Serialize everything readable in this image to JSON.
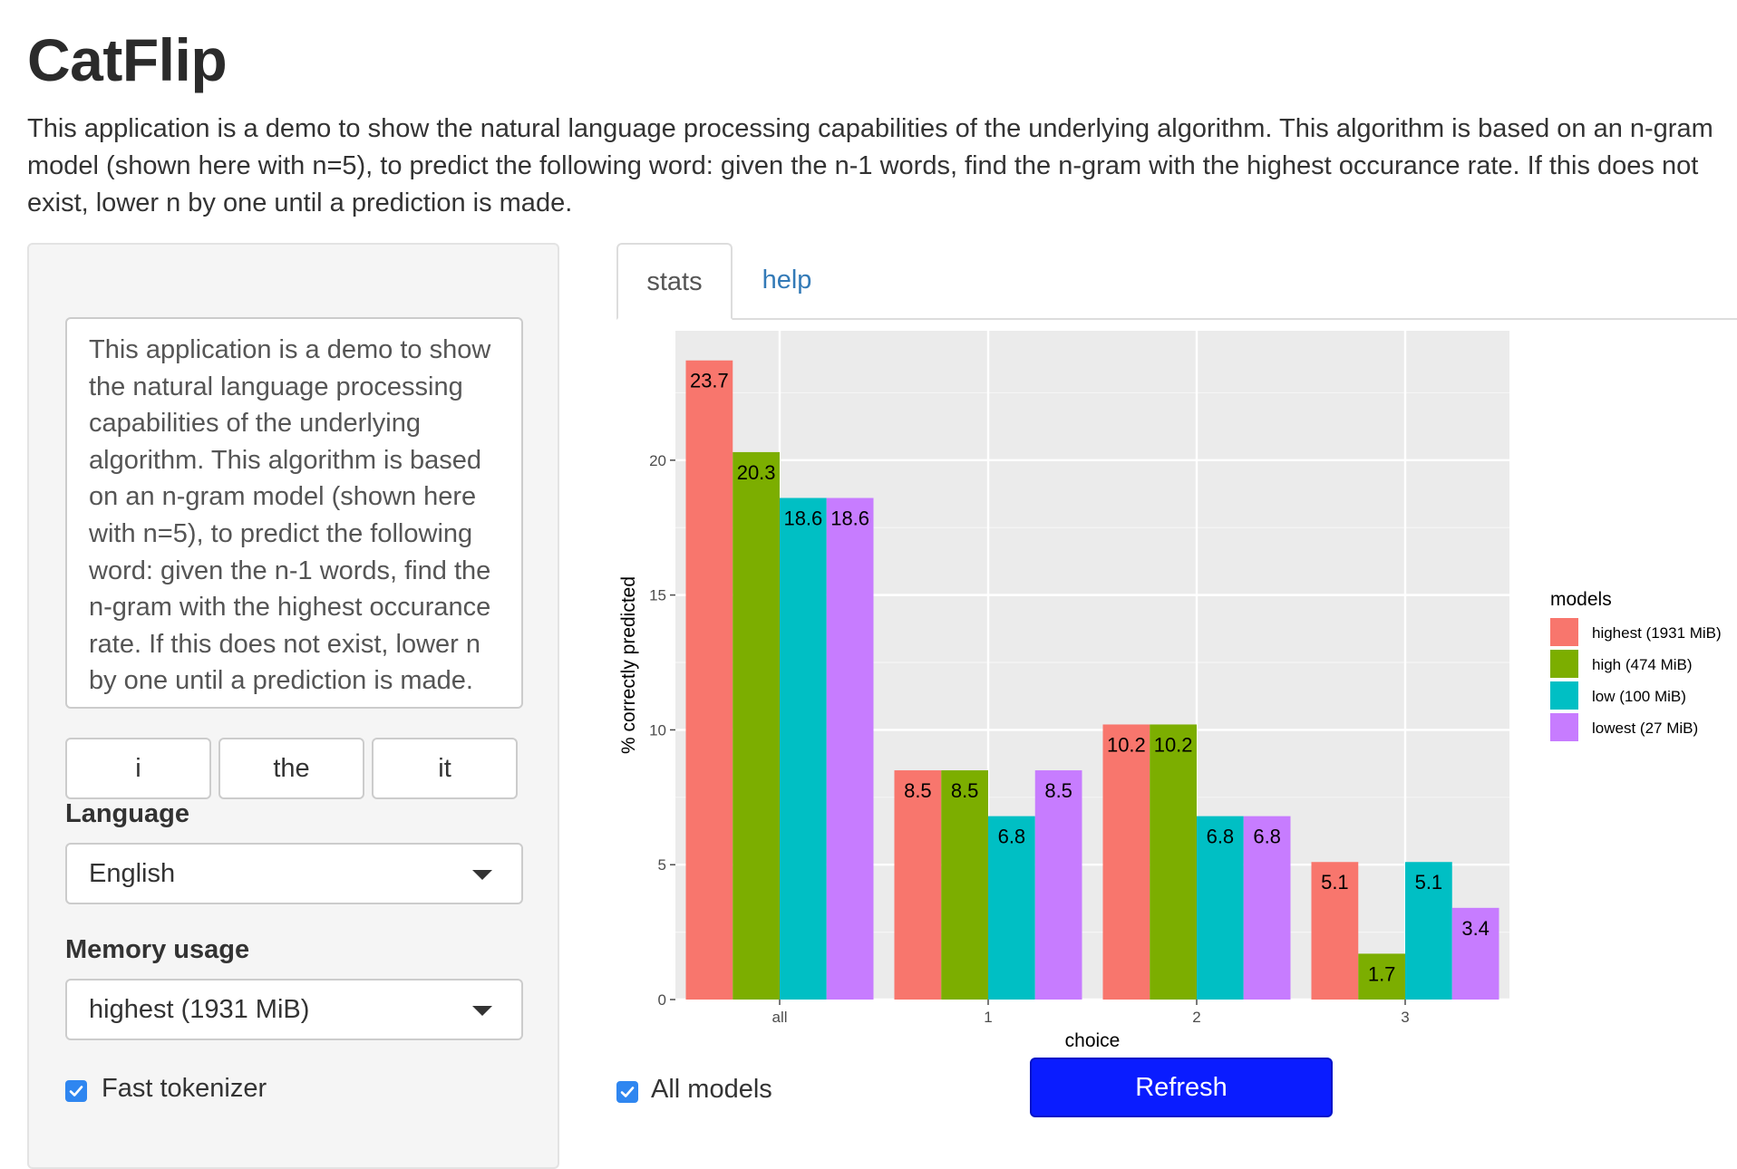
{
  "app": {
    "title": "CatFlip",
    "description": "This application is a demo to show the natural language processing capabilities of the underlying algorithm. This algorithm is based on an n-gram model (shown here with n=5), to predict the following word: given the n-1 words, find the n-gram with the highest occurance rate. If this does not exist, lower n by one until a prediction is made."
  },
  "sidebar": {
    "input_text": "This application is a demo to show the natural language processing capabilities of the underlying algorithm. This algorithm is based on an n-gram model (shown here with n=5), to predict the following word: given the n-1 words, find the n-gram with the highest occurance rate. If this does not exist, lower n by one until a prediction is made.",
    "suggestions": [
      "i",
      "the",
      "it"
    ],
    "language_label": "Language",
    "language_value": "English",
    "memory_label": "Memory usage",
    "memory_value": "highest (1931 MiB)",
    "fast_tokenizer_label": "Fast tokenizer",
    "fast_tokenizer_checked": true
  },
  "tabs": [
    {
      "label": "stats",
      "active": true
    },
    {
      "label": "help",
      "active": false
    }
  ],
  "footer": {
    "all_models_label": "All models",
    "all_models_checked": true,
    "refresh_label": "Refresh"
  },
  "chart_data": {
    "type": "bar",
    "title": "",
    "xlabel": "choice",
    "ylabel": "% correctly predicted",
    "categories": [
      "all",
      "1",
      "2",
      "3"
    ],
    "ylim": [
      0,
      24.8
    ],
    "yticks": [
      0,
      5,
      10,
      15,
      20
    ],
    "grid": true,
    "legend": {
      "title": "models",
      "position": "right"
    },
    "series": [
      {
        "name": "highest (1931 MiB)",
        "color": "#F8766D",
        "values": [
          23.7,
          8.5,
          10.2,
          5.1
        ]
      },
      {
        "name": "high (474 MiB)",
        "color": "#7CAE00",
        "values": [
          20.3,
          8.5,
          10.2,
          1.7
        ]
      },
      {
        "name": "low (100 MiB)",
        "color": "#00BFC4",
        "values": [
          18.6,
          6.8,
          6.8,
          5.1
        ]
      },
      {
        "name": "lowest (27 MiB)",
        "color": "#C77CFF",
        "values": [
          18.6,
          8.5,
          6.8,
          3.4
        ]
      }
    ]
  }
}
